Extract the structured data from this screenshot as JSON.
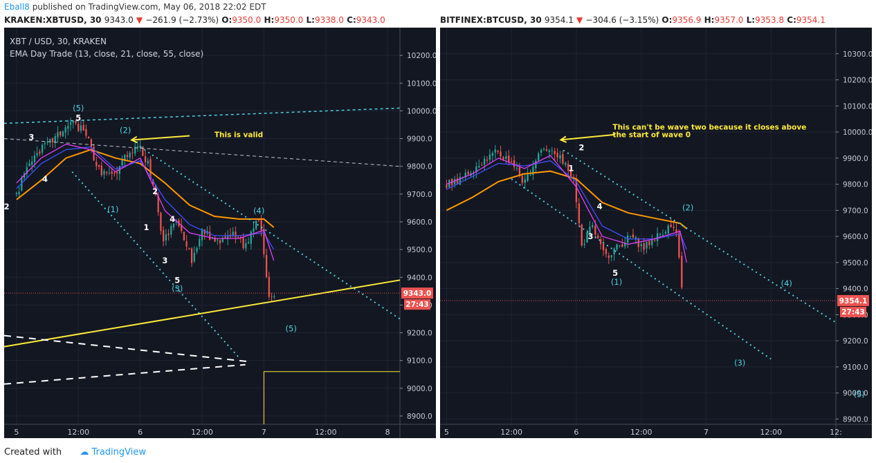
{
  "header": {
    "author": "Eball8",
    "published_text": "published on TradingView.com, May 06, 2018 22:02 EDT"
  },
  "left_header": {
    "symbol": "KRAKEN:XBTUSD, 30",
    "last": "9343.0",
    "change": "−261.9 (−2.73%)",
    "o_label": "O:",
    "o": "9350.0",
    "h_label": "H:",
    "h": "9350.0",
    "l_label": "L:",
    "l": "9338.0",
    "c_label": "C:",
    "c": "9343.0"
  },
  "right_header": {
    "symbol": "BITFINEX:BTCUSD, 30",
    "last": "9354.1",
    "change": "−304.6 (−3.15%)",
    "o_label": "O:",
    "o": "9356.9",
    "h_label": "H:",
    "h": "9357.0",
    "l_label": "L:",
    "l": "9353.8",
    "c_label": "C:",
    "c": "9354.1"
  },
  "footer": {
    "created_with": "Created with",
    "brand": "TradingView"
  },
  "chart_data": [
    {
      "type": "candlestick",
      "legend_title": "XBT / USD, 30, KRAKEN",
      "indicator_label": "EMA Day Trade (13, close, 21, close, 55, close)",
      "ylim": [
        8870,
        10300
      ],
      "y_ticks": [
        8900,
        9000,
        9100,
        9200,
        9300,
        9400,
        9500,
        9600,
        9700,
        9800,
        9900,
        10000,
        10100,
        10200
      ],
      "y_tick_labels": [
        "8900.0",
        "9000.0",
        "9100.0",
        "9200.0",
        "9300.0",
        "9400.0",
        "9500.0",
        "9600.0",
        "9700.0",
        "9800.0",
        "9900.0",
        "10000.0",
        "10100.0",
        "10200.0"
      ],
      "xlim": [
        -0.1,
        3.1
      ],
      "x_ticks": [
        0,
        0.5,
        1,
        1.5,
        2,
        2.5,
        3
      ],
      "x_tick_labels": [
        "5",
        "12:00",
        "6",
        "12:00",
        "7",
        "12:00",
        "8"
      ],
      "last_price_label": "9343.0",
      "last_price": 9343.0,
      "countdown": "27:43",
      "colors": {
        "up": "#26a69a",
        "down": "#ef5350",
        "ema13": "#e040fb",
        "ema21": "#3f51ff",
        "ema55": "#ff9800",
        "channel": "#4dd0e1",
        "dashed": "#ffffff",
        "yellow": "#ffeb3b"
      },
      "candles_path": [
        [
          0,
          9700
        ],
        [
          0.12,
          9830
        ],
        [
          0.28,
          9890
        ],
        [
          0.45,
          9960
        ],
        [
          0.56,
          9920
        ],
        [
          0.66,
          9790
        ],
        [
          0.78,
          9760
        ],
        [
          0.88,
          9840
        ],
        [
          0.98,
          9880
        ],
        [
          1.06,
          9810
        ],
        [
          1.12,
          9700
        ],
        [
          1.18,
          9530
        ],
        [
          1.3,
          9600
        ],
        [
          1.42,
          9460
        ],
        [
          1.5,
          9570
        ],
        [
          1.62,
          9520
        ],
        [
          1.75,
          9560
        ],
        [
          1.85,
          9510
        ],
        [
          1.92,
          9590
        ],
        [
          1.97,
          9610
        ],
        [
          2.0,
          9480
        ],
        [
          2.04,
          9330
        ],
        [
          2.1,
          9345
        ]
      ],
      "ema_55": [
        [
          0,
          9680
        ],
        [
          0.2,
          9750
        ],
        [
          0.4,
          9830
        ],
        [
          0.6,
          9860
        ],
        [
          0.8,
          9830
        ],
        [
          1.0,
          9810
        ],
        [
          1.2,
          9740
        ],
        [
          1.4,
          9660
        ],
        [
          1.6,
          9620
        ],
        [
          1.8,
          9610
        ],
        [
          2.0,
          9610
        ],
        [
          2.08,
          9580
        ]
      ],
      "ema_21": [
        [
          0,
          9720
        ],
        [
          0.2,
          9810
        ],
        [
          0.4,
          9860
        ],
        [
          0.6,
          9870
        ],
        [
          0.8,
          9790
        ],
        [
          1.0,
          9820
        ],
        [
          1.2,
          9680
        ],
        [
          1.4,
          9590
        ],
        [
          1.6,
          9550
        ],
        [
          1.8,
          9550
        ],
        [
          2.0,
          9560
        ],
        [
          2.08,
          9500
        ]
      ],
      "ema_13": [
        [
          0,
          9740
        ],
        [
          0.2,
          9830
        ],
        [
          0.4,
          9880
        ],
        [
          0.6,
          9860
        ],
        [
          0.8,
          9780
        ],
        [
          1.0,
          9830
        ],
        [
          1.2,
          9640
        ],
        [
          1.4,
          9560
        ],
        [
          1.6,
          9540
        ],
        [
          1.8,
          9540
        ],
        [
          2.0,
          9570
        ],
        [
          2.08,
          9460
        ]
      ],
      "lines": [
        {
          "kind": "cyan-dashed",
          "points": [
            [
              -0.1,
              9955
            ],
            [
              3.1,
              10010
            ]
          ]
        },
        {
          "kind": "white-dashed",
          "points": [
            [
              -0.1,
              9900
            ],
            [
              3.1,
              9800
            ]
          ]
        },
        {
          "kind": "cyan-dotted",
          "points": [
            [
              1.0,
              9870
            ],
            [
              3.1,
              9250
            ]
          ]
        },
        {
          "kind": "cyan-dotted",
          "points": [
            [
              0.45,
              9780
            ],
            [
              1.8,
              9110
            ]
          ]
        },
        {
          "kind": "yellow",
          "points": [
            [
              -0.1,
              9150
            ],
            [
              3.1,
              9390
            ]
          ]
        },
        {
          "kind": "white-dashed-thick",
          "points": [
            [
              -0.1,
              9190
            ],
            [
              1.9,
              9095
            ]
          ]
        },
        {
          "kind": "white-dashed-thick",
          "points": [
            [
              -0.1,
              9015
            ],
            [
              1.85,
              9085
            ]
          ]
        },
        {
          "kind": "yellow-box",
          "points": [
            [
              2.0,
              8870
            ],
            [
              2.0,
              9060
            ],
            [
              3.1,
              9060
            ]
          ]
        },
        {
          "kind": "yellow-arrow",
          "points": [
            [
              1.4,
              9910
            ],
            [
              0.93,
              9895
            ]
          ]
        }
      ],
      "annotations": [
        {
          "text": "(5)",
          "x": 0.5,
          "y": 10000,
          "color": "cyan"
        },
        {
          "text": "5",
          "x": 0.5,
          "y": 9965,
          "color": "white"
        },
        {
          "text": "3",
          "x": 0.12,
          "y": 9895,
          "color": "white"
        },
        {
          "text": "4",
          "x": 0.23,
          "y": 9745,
          "color": "white"
        },
        {
          "text": "2",
          "x": -0.08,
          "y": 9645,
          "color": "white"
        },
        {
          "text": "(1)",
          "x": 0.78,
          "y": 9635,
          "color": "cyan"
        },
        {
          "text": "(2)",
          "x": 0.88,
          "y": 9920,
          "color": "cyan"
        },
        {
          "text": "This is valid",
          "x": 1.6,
          "y": 9905,
          "color": "yellow"
        },
        {
          "text": "2",
          "x": 1.12,
          "y": 9700,
          "color": "white"
        },
        {
          "text": "1",
          "x": 1.05,
          "y": 9570,
          "color": "white"
        },
        {
          "text": "4",
          "x": 1.26,
          "y": 9600,
          "color": "white"
        },
        {
          "text": "3",
          "x": 1.2,
          "y": 9450,
          "color": "white"
        },
        {
          "text": "5",
          "x": 1.3,
          "y": 9380,
          "color": "white"
        },
        {
          "text": "(3)",
          "x": 1.3,
          "y": 9350,
          "color": "cyan"
        },
        {
          "text": "(4)",
          "x": 1.96,
          "y": 9630,
          "color": "cyan"
        },
        {
          "text": "(5)",
          "x": 2.22,
          "y": 9205,
          "color": "cyan"
        }
      ]
    },
    {
      "type": "candlestick",
      "ylim": [
        8880,
        10400
      ],
      "y_ticks": [
        8900,
        9000,
        9100,
        9200,
        9300,
        9400,
        9500,
        9600,
        9700,
        9800,
        9900,
        10000,
        10100,
        10200,
        10300
      ],
      "y_tick_labels": [
        "8900.0",
        "9000.0",
        "9100.0",
        "9200.0",
        "9300.0",
        "9400.0",
        "9500.0",
        "9600.0",
        "9700.0",
        "9800.0",
        "9900.0",
        "10000.0",
        "10100.0",
        "10200.0",
        "10300.0"
      ],
      "xlim": [
        -0.05,
        3.0
      ],
      "x_ticks": [
        0,
        0.5,
        1,
        1.5,
        2,
        2.5,
        3
      ],
      "x_tick_labels": [
        "5",
        "12:00",
        "6",
        "12:00",
        "7",
        "12:00",
        "12:"
      ],
      "last_price_label": "9354.1",
      "last_price": 9354.1,
      "countdown": "27:43",
      "candles_path": [
        [
          0,
          9800
        ],
        [
          0.12,
          9820
        ],
        [
          0.25,
          9880
        ],
        [
          0.38,
          9920
        ],
        [
          0.5,
          9890
        ],
        [
          0.6,
          9800
        ],
        [
          0.72,
          9930
        ],
        [
          0.82,
          9940
        ],
        [
          0.9,
          9880
        ],
        [
          0.98,
          9830
        ],
        [
          1.04,
          9560
        ],
        [
          1.12,
          9640
        ],
        [
          1.22,
          9520
        ],
        [
          1.32,
          9560
        ],
        [
          1.42,
          9600
        ],
        [
          1.52,
          9555
        ],
        [
          1.62,
          9600
        ],
        [
          1.72,
          9640
        ],
        [
          1.78,
          9600
        ],
        [
          1.82,
          9350
        ]
      ],
      "ema_55": [
        [
          0,
          9700
        ],
        [
          0.2,
          9750
        ],
        [
          0.4,
          9810
        ],
        [
          0.6,
          9840
        ],
        [
          0.8,
          9850
        ],
        [
          1.0,
          9820
        ],
        [
          1.2,
          9730
        ],
        [
          1.4,
          9690
        ],
        [
          1.6,
          9670
        ],
        [
          1.8,
          9650
        ],
        [
          1.85,
          9630
        ]
      ],
      "ema_21": [
        [
          0,
          9780
        ],
        [
          0.2,
          9830
        ],
        [
          0.4,
          9880
        ],
        [
          0.6,
          9870
        ],
        [
          0.8,
          9890
        ],
        [
          1.0,
          9810
        ],
        [
          1.2,
          9640
        ],
        [
          1.4,
          9590
        ],
        [
          1.6,
          9590
        ],
        [
          1.8,
          9610
        ],
        [
          1.85,
          9550
        ]
      ],
      "ema_13": [
        [
          0,
          9800
        ],
        [
          0.2,
          9840
        ],
        [
          0.4,
          9900
        ],
        [
          0.6,
          9860
        ],
        [
          0.8,
          9910
        ],
        [
          1.0,
          9790
        ],
        [
          1.2,
          9600
        ],
        [
          1.4,
          9570
        ],
        [
          1.6,
          9590
        ],
        [
          1.8,
          9620
        ],
        [
          1.85,
          9500
        ]
      ],
      "lines": [
        {
          "kind": "cyan-dotted",
          "points": [
            [
              0.9,
              9930
            ],
            [
              3.0,
              9270
            ]
          ]
        },
        {
          "kind": "cyan-dotted",
          "points": [
            [
              0.5,
              9820
            ],
            [
              2.5,
              9130
            ]
          ]
        },
        {
          "kind": "yellow-arrow",
          "points": [
            [
              1.3,
              9990
            ],
            [
              0.88,
              9970
            ]
          ]
        }
      ],
      "annotations": [
        {
          "text": "This can't be wave two because it closes above",
          "x": 1.28,
          "y": 10010,
          "color": "yellow"
        },
        {
          "text": "the start of wave 0",
          "x": 1.28,
          "y": 9980,
          "color": "yellow"
        },
        {
          "text": "2",
          "x": 1.04,
          "y": 9930,
          "color": "white"
        },
        {
          "text": "1",
          "x": 0.96,
          "y": 9850,
          "color": "white"
        },
        {
          "text": "4",
          "x": 1.18,
          "y": 9705,
          "color": "white"
        },
        {
          "text": "3",
          "x": 1.11,
          "y": 9590,
          "color": "white"
        },
        {
          "text": "5",
          "x": 1.3,
          "y": 9450,
          "color": "white"
        },
        {
          "text": "(1)",
          "x": 1.31,
          "y": 9415,
          "color": "cyan"
        },
        {
          "text": "(2)",
          "x": 1.86,
          "y": 9700,
          "color": "cyan"
        },
        {
          "text": "(4)",
          "x": 2.62,
          "y": 9410,
          "color": "cyan"
        },
        {
          "text": "(3)",
          "x": 2.26,
          "y": 9105,
          "color": "cyan"
        },
        {
          "text": "(5)",
          "x": 3.18,
          "y": 8985,
          "color": "cyan"
        }
      ]
    }
  ]
}
